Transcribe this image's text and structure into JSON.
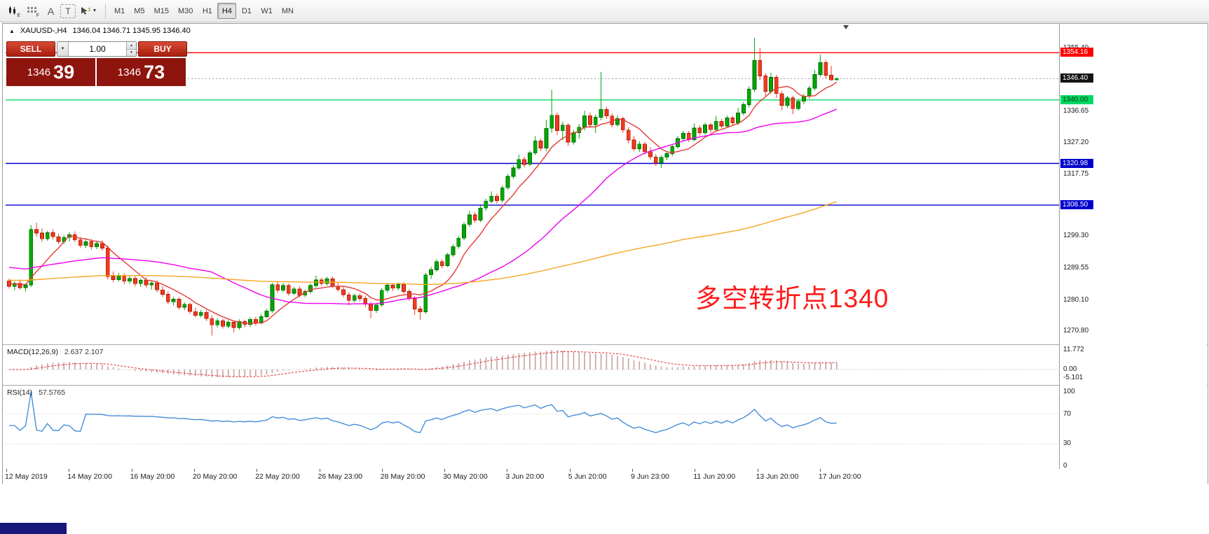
{
  "toolbar": {
    "tools": {
      "a_label": "A",
      "t_label": "T",
      "e_sub": "E",
      "f_sub": "F"
    },
    "timeframes": [
      {
        "label": "M1",
        "active": false
      },
      {
        "label": "M5",
        "active": false
      },
      {
        "label": "M15",
        "active": false
      },
      {
        "label": "M30",
        "active": false
      },
      {
        "label": "H1",
        "active": false
      },
      {
        "label": "H4",
        "active": true
      },
      {
        "label": "D1",
        "active": false
      },
      {
        "label": "W1",
        "active": false
      },
      {
        "label": "MN",
        "active": false
      }
    ]
  },
  "window": {
    "symbol": "XAUUSD-,H4",
    "ohlc": "1346.04 1346.71 1345.95 1346.40"
  },
  "trade_panel": {
    "sell": "SELL",
    "buy": "BUY",
    "volume": "1.00",
    "bid": {
      "whole": "1346",
      "frac": "39"
    },
    "ask": {
      "whole": "1346",
      "frac": "73"
    }
  },
  "annotation": {
    "text": "多空转折点1340",
    "color": "#FF1A1A"
  },
  "macd_panel": {
    "title": "MACD(12,26,9)",
    "values": "2.637 2.107",
    "axis_labels": [
      "11.772",
      "0.00",
      "-5.101"
    ],
    "axis_values": [
      11.772,
      0,
      -5.101
    ]
  },
  "rsi_panel": {
    "title": "RSI(14)",
    "value": "57.5765",
    "axis_labels": [
      "100",
      "70",
      "30",
      "0"
    ],
    "axis_values": [
      100,
      70,
      30,
      0
    ],
    "levels": [
      70,
      30
    ]
  },
  "price_axis": {
    "plain": [
      {
        "label": "1355.40",
        "price": 1355.4
      },
      {
        "label": "1336.65",
        "price": 1336.65
      },
      {
        "label": "1327.20",
        "price": 1327.2
      },
      {
        "label": "1317.75",
        "price": 1317.75
      },
      {
        "label": "1299.30",
        "price": 1299.3
      },
      {
        "label": "1289.55",
        "price": 1289.55
      },
      {
        "label": "1280.10",
        "price": 1280.1
      },
      {
        "label": "1270.80",
        "price": 1270.8
      }
    ],
    "tagged": [
      {
        "label": "1354.16",
        "price": 1354.16,
        "bg": "#FF0000",
        "fg": "#FFFFFF"
      },
      {
        "label": "1346.40",
        "price": 1346.4,
        "bg": "#141414",
        "fg": "#FFFFFF"
      },
      {
        "label": "1340.00",
        "price": 1340.0,
        "bg": "#00D964",
        "fg": "#073807"
      },
      {
        "label": "1320.98",
        "price": 1320.98,
        "bg": "#0000CD",
        "fg": "#FFFFFF"
      },
      {
        "label": "1308.50",
        "price": 1308.5,
        "bg": "#0000CD",
        "fg": "#FFFFFF"
      }
    ]
  },
  "hlines": [
    {
      "price": 1354.16,
      "color": "#FF0000",
      "style": "solid"
    },
    {
      "price": 1346.4,
      "color": "#999999",
      "style": "dotted"
    },
    {
      "price": 1340.0,
      "color": "#00D964",
      "style": "solid"
    },
    {
      "price": 1320.98,
      "color": "#0000CD",
      "style": "solid"
    },
    {
      "price": 1308.5,
      "color": "#0000CD",
      "style": "solid"
    }
  ],
  "chart_data": {
    "type": "candlestick",
    "symbol": "XAUUSD",
    "timeframe": "H4",
    "price_range": [
      1267.0,
      1362.6
    ],
    "up_color": "#00A800",
    "down_color": "#F03B20",
    "time_labels": [
      "12 May 2019",
      "14 May 20:00",
      "16 May 20:00",
      "20 May 20:00",
      "22 May 20:00",
      "26 May 23:00",
      "28 May 20:00",
      "30 May 20:00",
      "3 Jun 20:00",
      "5 Jun 20:00",
      "9 Jun 23:00",
      "11 Jun 20:00",
      "13 Jun 20:00",
      "17 Jun 20:00"
    ],
    "moving_averages": [
      {
        "name": "fast",
        "period": 8,
        "seed": 1285,
        "color": "#E53935"
      },
      {
        "name": "medium",
        "period": 34,
        "seed": 1290,
        "color": "#EE00EE"
      },
      {
        "name": "slow",
        "period": 120,
        "seed": 1286,
        "color": "#F5A623"
      }
    ],
    "indicators": {
      "macd": {
        "fast": 12,
        "slow": 26,
        "signal": 9,
        "hist_color": "#C9A0A0",
        "signal_color": "#E03030"
      },
      "rsi": {
        "period": 14,
        "color": "#3A87D8"
      }
    },
    "candles": [
      [
        1285.8,
        1286.5,
        1283.5,
        1284.2
      ],
      [
        1284.2,
        1285.6,
        1283.0,
        1285.1
      ],
      [
        1285.1,
        1286.2,
        1283.2,
        1283.8
      ],
      [
        1283.8,
        1285.0,
        1282.6,
        1284.6
      ],
      [
        1284.6,
        1302.5,
        1284.0,
        1301.2
      ],
      [
        1301.2,
        1303.2,
        1299.0,
        1300.1
      ],
      [
        1300.1,
        1301.5,
        1297.5,
        1298.4
      ],
      [
        1298.4,
        1300.8,
        1297.8,
        1300.2
      ],
      [
        1300.2,
        1301.2,
        1298.2,
        1299.0
      ],
      [
        1299.0,
        1300.0,
        1296.8,
        1297.6
      ],
      [
        1297.6,
        1299.5,
        1296.9,
        1298.8
      ],
      [
        1298.8,
        1300.4,
        1297.6,
        1299.6
      ],
      [
        1299.6,
        1300.6,
        1297.4,
        1298.1
      ],
      [
        1298.1,
        1299.0,
        1295.7,
        1296.4
      ],
      [
        1296.4,
        1298.3,
        1295.6,
        1297.5
      ],
      [
        1297.5,
        1298.4,
        1295.2,
        1296.0
      ],
      [
        1296.0,
        1297.8,
        1295.3,
        1297.0
      ],
      [
        1297.0,
        1297.9,
        1294.8,
        1295.6
      ],
      [
        1295.6,
        1296.4,
        1286.2,
        1287.1
      ],
      [
        1287.1,
        1288.6,
        1285.4,
        1286.2
      ],
      [
        1286.2,
        1288.2,
        1285.6,
        1287.4
      ],
      [
        1287.4,
        1288.0,
        1284.8,
        1285.7
      ],
      [
        1285.7,
        1287.3,
        1284.9,
        1286.5
      ],
      [
        1286.5,
        1287.2,
        1284.2,
        1285.0
      ],
      [
        1285.0,
        1286.6,
        1284.0,
        1286.0
      ],
      [
        1286.0,
        1286.9,
        1283.8,
        1284.6
      ],
      [
        1284.6,
        1285.8,
        1283.2,
        1285.2
      ],
      [
        1285.2,
        1285.9,
        1282.4,
        1283.1
      ],
      [
        1283.1,
        1284.2,
        1281.0,
        1281.8
      ],
      [
        1281.8,
        1282.6,
        1278.8,
        1279.6
      ],
      [
        1279.6,
        1281.0,
        1278.4,
        1280.3
      ],
      [
        1280.3,
        1280.9,
        1277.2,
        1277.9
      ],
      [
        1277.9,
        1279.4,
        1277.0,
        1278.8
      ],
      [
        1278.8,
        1279.3,
        1275.9,
        1276.6
      ],
      [
        1276.6,
        1277.8,
        1274.9,
        1275.5
      ],
      [
        1275.5,
        1277.1,
        1274.8,
        1276.4
      ],
      [
        1276.4,
        1277.0,
        1273.8,
        1274.5
      ],
      [
        1274.5,
        1275.4,
        1269.4,
        1272.6
      ],
      [
        1272.6,
        1274.6,
        1271.8,
        1273.8
      ],
      [
        1273.8,
        1274.4,
        1271.5,
        1272.2
      ],
      [
        1272.2,
        1274.0,
        1271.6,
        1273.4
      ],
      [
        1273.4,
        1273.9,
        1270.4,
        1271.8
      ],
      [
        1271.8,
        1274.3,
        1271.2,
        1273.6
      ],
      [
        1273.6,
        1274.2,
        1271.9,
        1272.7
      ],
      [
        1272.7,
        1274.9,
        1272.0,
        1274.3
      ],
      [
        1274.3,
        1275.0,
        1272.4,
        1273.2
      ],
      [
        1273.2,
        1275.8,
        1272.8,
        1275.1
      ],
      [
        1275.1,
        1277.4,
        1274.6,
        1276.8
      ],
      [
        1276.8,
        1285.2,
        1276.2,
        1284.6
      ],
      [
        1284.6,
        1285.4,
        1282.2,
        1283.0
      ],
      [
        1283.0,
        1285.1,
        1282.4,
        1284.4
      ],
      [
        1284.4,
        1285.0,
        1281.4,
        1282.1
      ],
      [
        1282.1,
        1284.0,
        1281.5,
        1283.4
      ],
      [
        1283.4,
        1284.1,
        1280.8,
        1281.5
      ],
      [
        1281.5,
        1283.2,
        1280.9,
        1282.6
      ],
      [
        1282.6,
        1285.0,
        1282.0,
        1284.4
      ],
      [
        1284.4,
        1287.4,
        1283.8,
        1286.1
      ],
      [
        1286.1,
        1286.8,
        1284.3,
        1285.0
      ],
      [
        1285.0,
        1287.0,
        1284.4,
        1286.4
      ],
      [
        1286.4,
        1287.1,
        1283.6,
        1284.2
      ],
      [
        1284.2,
        1285.3,
        1282.6,
        1283.2
      ],
      [
        1283.2,
        1284.0,
        1280.9,
        1281.6
      ],
      [
        1281.6,
        1282.4,
        1278.6,
        1280.0
      ],
      [
        1280.0,
        1282.0,
        1279.4,
        1281.4
      ],
      [
        1281.4,
        1282.1,
        1279.7,
        1280.5
      ],
      [
        1280.5,
        1281.3,
        1277.9,
        1278.8
      ],
      [
        1278.8,
        1279.5,
        1274.6,
        1276.9
      ],
      [
        1276.9,
        1279.2,
        1276.2,
        1278.6
      ],
      [
        1278.6,
        1283.6,
        1278.0,
        1283.0
      ],
      [
        1283.0,
        1285.2,
        1282.3,
        1284.5
      ],
      [
        1284.5,
        1285.1,
        1282.8,
        1283.6
      ],
      [
        1283.6,
        1285.3,
        1283.0,
        1284.7
      ],
      [
        1284.7,
        1285.4,
        1281.9,
        1282.6
      ],
      [
        1282.6,
        1283.3,
        1279.8,
        1280.5
      ],
      [
        1280.5,
        1281.2,
        1275.6,
        1277.4
      ],
      [
        1277.4,
        1278.3,
        1274.1,
        1276.5
      ],
      [
        1276.5,
        1288.2,
        1275.9,
        1287.6
      ],
      [
        1287.6,
        1290.0,
        1286.4,
        1289.1
      ],
      [
        1289.1,
        1292.3,
        1288.5,
        1291.6
      ],
      [
        1291.6,
        1292.2,
        1289.6,
        1290.4
      ],
      [
        1290.4,
        1294.2,
        1289.9,
        1293.6
      ],
      [
        1293.6,
        1296.8,
        1293.0,
        1296.1
      ],
      [
        1296.1,
        1299.3,
        1295.4,
        1298.6
      ],
      [
        1298.6,
        1303.4,
        1298.0,
        1302.7
      ],
      [
        1302.7,
        1306.8,
        1302.0,
        1305.6
      ],
      [
        1305.6,
        1306.4,
        1303.1,
        1304.0
      ],
      [
        1304.0,
        1308.4,
        1303.4,
        1307.6
      ],
      [
        1307.6,
        1310.4,
        1306.8,
        1309.7
      ],
      [
        1309.7,
        1312.6,
        1309.0,
        1311.2
      ],
      [
        1311.2,
        1312.0,
        1308.9,
        1309.9
      ],
      [
        1309.9,
        1314.4,
        1309.3,
        1313.7
      ],
      [
        1313.7,
        1317.8,
        1313.1,
        1317.1
      ],
      [
        1317.1,
        1320.4,
        1316.4,
        1319.6
      ],
      [
        1319.6,
        1323.6,
        1319.0,
        1322.2
      ],
      [
        1322.2,
        1323.0,
        1319.8,
        1320.7
      ],
      [
        1320.7,
        1324.8,
        1320.1,
        1324.1
      ],
      [
        1324.1,
        1329.2,
        1323.5,
        1327.7
      ],
      [
        1327.7,
        1328.5,
        1324.7,
        1325.6
      ],
      [
        1325.6,
        1334.0,
        1324.6,
        1331.5
      ],
      [
        1331.5,
        1343.0,
        1330.2,
        1335.4
      ],
      [
        1335.4,
        1336.2,
        1329.5,
        1330.8
      ],
      [
        1330.8,
        1333.5,
        1328.0,
        1332.4
      ],
      [
        1332.4,
        1333.0,
        1326.2,
        1327.4
      ],
      [
        1327.4,
        1331.0,
        1326.6,
        1330.2
      ],
      [
        1330.2,
        1332.8,
        1328.4,
        1331.8
      ],
      [
        1331.8,
        1336.8,
        1330.9,
        1335.3
      ],
      [
        1335.3,
        1336.2,
        1331.6,
        1332.6
      ],
      [
        1332.6,
        1335.6,
        1330.1,
        1334.8
      ],
      [
        1334.8,
        1348.4,
        1333.9,
        1337.1
      ],
      [
        1337.1,
        1338.0,
        1334.3,
        1335.2
      ],
      [
        1335.2,
        1336.0,
        1331.8,
        1332.6
      ],
      [
        1332.6,
        1335.4,
        1332.0,
        1334.4
      ],
      [
        1334.4,
        1335.0,
        1330.2,
        1331.0
      ],
      [
        1331.0,
        1331.8,
        1327.0,
        1328.0
      ],
      [
        1328.0,
        1329.2,
        1324.6,
        1325.4
      ],
      [
        1325.4,
        1327.6,
        1324.4,
        1326.8
      ],
      [
        1326.8,
        1327.5,
        1323.6,
        1324.5
      ],
      [
        1324.5,
        1325.8,
        1322.1,
        1322.9
      ],
      [
        1322.9,
        1323.8,
        1320.2,
        1321.2
      ],
      [
        1321.2,
        1323.4,
        1319.6,
        1322.8
      ],
      [
        1322.8,
        1324.6,
        1322.0,
        1323.9
      ],
      [
        1323.9,
        1326.7,
        1323.2,
        1326.0
      ],
      [
        1326.0,
        1329.2,
        1325.4,
        1328.4
      ],
      [
        1328.4,
        1330.8,
        1327.7,
        1330.0
      ],
      [
        1330.0,
        1330.7,
        1327.4,
        1328.1
      ],
      [
        1328.1,
        1333.0,
        1327.6,
        1331.6
      ],
      [
        1331.6,
        1332.4,
        1329.3,
        1330.2
      ],
      [
        1330.2,
        1333.2,
        1329.6,
        1332.5
      ],
      [
        1332.5,
        1333.1,
        1330.2,
        1331.1
      ],
      [
        1331.1,
        1335.2,
        1330.5,
        1333.6
      ],
      [
        1333.6,
        1334.3,
        1331.4,
        1332.2
      ],
      [
        1332.2,
        1335.3,
        1331.6,
        1334.6
      ],
      [
        1334.6,
        1335.2,
        1332.3,
        1333.1
      ],
      [
        1333.1,
        1337.6,
        1332.5,
        1336.1
      ],
      [
        1336.1,
        1339.4,
        1335.4,
        1338.6
      ],
      [
        1338.6,
        1344.1,
        1337.8,
        1343.2
      ],
      [
        1343.2,
        1358.6,
        1342.4,
        1351.8
      ],
      [
        1351.8,
        1355.6,
        1345.9,
        1347.2
      ],
      [
        1347.2,
        1348.0,
        1341.2,
        1342.6
      ],
      [
        1342.6,
        1348.2,
        1341.8,
        1346.8
      ],
      [
        1346.8,
        1347.5,
        1340.6,
        1341.9
      ],
      [
        1341.9,
        1342.7,
        1336.9,
        1338.4
      ],
      [
        1338.4,
        1341.2,
        1337.6,
        1340.6
      ],
      [
        1340.6,
        1341.3,
        1335.7,
        1337.4
      ],
      [
        1337.4,
        1340.3,
        1336.8,
        1339.6
      ],
      [
        1339.6,
        1341.8,
        1338.7,
        1341.1
      ],
      [
        1341.1,
        1344.2,
        1340.4,
        1343.5
      ],
      [
        1343.5,
        1349.0,
        1342.8,
        1347.6
      ],
      [
        1347.6,
        1353.6,
        1346.9,
        1351.2
      ],
      [
        1351.2,
        1352.0,
        1346.4,
        1347.4
      ],
      [
        1347.4,
        1350.2,
        1345.8,
        1346.0
      ],
      [
        1346.0,
        1346.7,
        1345.9,
        1346.4
      ]
    ]
  }
}
